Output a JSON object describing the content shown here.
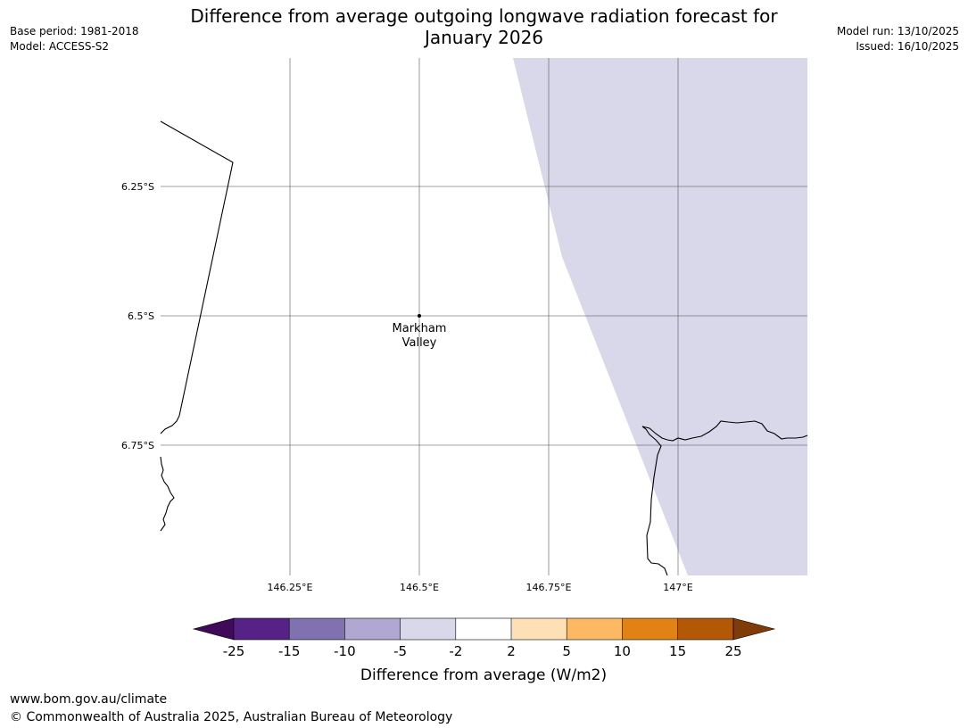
{
  "title": {
    "line1": "Difference from average outgoing longwave radiation forecast for",
    "line2": "January 2026"
  },
  "info_left": {
    "base_period": "Base period: 1981-2018",
    "model": "Model: ACCESS-S2"
  },
  "info_right": {
    "model_run": "Model run: 13/10/2025",
    "issued": "Issued: 16/10/2025"
  },
  "map": {
    "lat_labels": [
      "6.25°S",
      "6.5°S",
      "6.75°S"
    ],
    "lon_labels": [
      "146.25°E",
      "146.5°E",
      "146.75°E",
      "147°E"
    ],
    "place": {
      "name_line1": "Markham",
      "name_line2": "Valley"
    },
    "shaded_region_color": "#d8d8ea"
  },
  "colorbar": {
    "label": "Difference from average (W/m2)",
    "ticks": [
      "-25",
      "-15",
      "-10",
      "-5",
      "-2",
      "2",
      "5",
      "10",
      "15",
      "25"
    ],
    "colors": [
      "#3f0a5a",
      "#572287",
      "#8071b0",
      "#b0a8d3",
      "#d8d8ea",
      "#ffffff",
      "#fee0b6",
      "#fdb863",
      "#e08214",
      "#b35806",
      "#7f3b08"
    ]
  },
  "footer": {
    "url": "www.bom.gov.au/climate",
    "copyright": "© Commonwealth of Australia 2025, Australian Bureau of Meteorology"
  }
}
